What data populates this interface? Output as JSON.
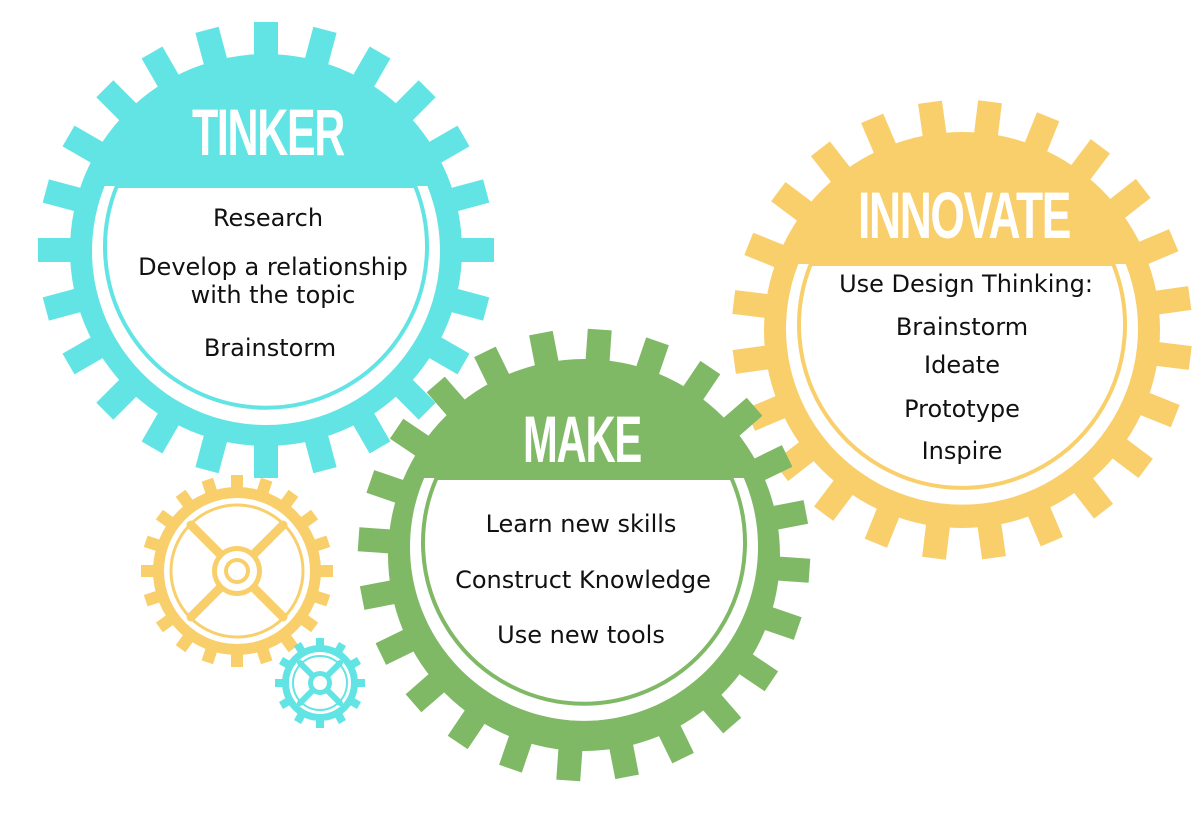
{
  "colors": {
    "cyan": "#62e4e4",
    "yellow": "#f9cf6c",
    "green": "#80b966",
    "background": "#ffffff",
    "text": "#111111"
  },
  "gears": {
    "tinker": {
      "title": "TINKER",
      "color": "#62e4e4",
      "items": [
        "Research",
        "Develop a relationship",
        "with the topic",
        "Brainstorm"
      ]
    },
    "innovate": {
      "title": "INNOVATE",
      "color": "#f9cf6c",
      "items": [
        "Use Design Thinking:",
        "Brainstorm",
        "Ideate",
        "Prototype",
        "Inspire"
      ]
    },
    "make": {
      "title": "MAKE",
      "color": "#80b966",
      "items": [
        "Learn new skills",
        "Construct Knowledge",
        "Use new tools"
      ]
    }
  },
  "decorative_gears": [
    {
      "name": "small-yellow-gear-icon",
      "color": "#f9cf6c"
    },
    {
      "name": "small-cyan-gear-icon",
      "color": "#62e4e4"
    }
  ]
}
